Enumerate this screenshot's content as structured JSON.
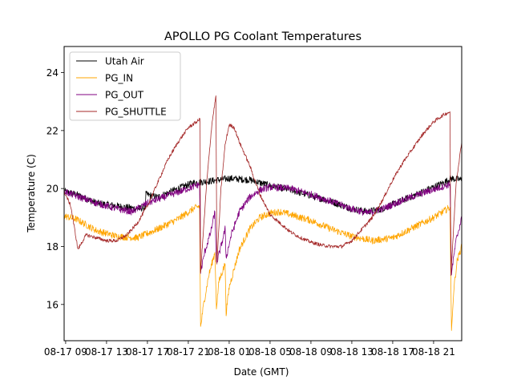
{
  "chart_data": {
    "type": "line",
    "title": "APOLLO PG Coolant Temperatures",
    "xlabel": "Date (GMT)",
    "ylabel": "Temperature (C)",
    "x_unit": "hours since 08-17 00:00 GMT",
    "xlim": [
      8.85,
      47.75
    ],
    "ylim": [
      14.75,
      24.9
    ],
    "xticks": [
      9,
      13,
      17,
      21,
      25,
      29,
      33,
      37,
      41,
      45
    ],
    "xtick_labels": [
      "08-17 09",
      "08-17 13",
      "08-17 17",
      "08-17 21",
      "08-18 01",
      "08-18 05",
      "08-18 09",
      "08-18 13",
      "08-18 17",
      "08-18 21"
    ],
    "yticks": [
      16,
      18,
      20,
      22,
      24
    ],
    "ytick_labels": [
      "16",
      "18",
      "20",
      "22",
      "24"
    ],
    "grid": false,
    "legend_position": "upper-left",
    "series": [
      {
        "name": "Utah Air",
        "color": "#000000",
        "noise": 0.12,
        "points": [
          [
            8.85,
            19.9
          ],
          [
            10,
            19.8
          ],
          [
            12,
            19.5
          ],
          [
            14,
            19.4
          ],
          [
            16,
            19.3
          ],
          [
            16.8,
            19.35
          ],
          [
            16.85,
            19.8
          ],
          [
            18,
            19.7
          ],
          [
            20,
            20.0
          ],
          [
            21.5,
            20.2
          ],
          [
            23,
            20.25
          ],
          [
            25,
            20.35
          ],
          [
            27,
            20.3
          ],
          [
            29,
            20.1
          ],
          [
            31,
            19.95
          ],
          [
            33,
            19.75
          ],
          [
            35,
            19.55
          ],
          [
            37,
            19.3
          ],
          [
            38.5,
            19.2
          ],
          [
            40,
            19.3
          ],
          [
            42,
            19.6
          ],
          [
            44,
            19.9
          ],
          [
            46,
            20.2
          ],
          [
            46.7,
            20.35
          ],
          [
            47.75,
            20.3
          ]
        ]
      },
      {
        "name": "PG_IN",
        "color": "#ffa500",
        "noise": 0.12,
        "points": [
          [
            8.85,
            19.05
          ],
          [
            10,
            18.95
          ],
          [
            12,
            18.55
          ],
          [
            14,
            18.35
          ],
          [
            16,
            18.3
          ],
          [
            18,
            18.6
          ],
          [
            20,
            18.95
          ],
          [
            21.5,
            19.3
          ],
          [
            22.1,
            19.4
          ],
          [
            22.2,
            15.2
          ],
          [
            22.5,
            16.0
          ],
          [
            23,
            17.0
          ],
          [
            23.6,
            17.8
          ],
          [
            23.75,
            15.9
          ],
          [
            24,
            16.8
          ],
          [
            24.6,
            17.4
          ],
          [
            24.7,
            15.7
          ],
          [
            25,
            16.6
          ],
          [
            26,
            17.9
          ],
          [
            27,
            18.6
          ],
          [
            28,
            19.0
          ],
          [
            29,
            19.15
          ],
          [
            30,
            19.2
          ],
          [
            31,
            19.1
          ],
          [
            33,
            18.9
          ],
          [
            35,
            18.6
          ],
          [
            37,
            18.35
          ],
          [
            39,
            18.2
          ],
          [
            41,
            18.3
          ],
          [
            43,
            18.65
          ],
          [
            45,
            19.0
          ],
          [
            46.6,
            19.35
          ],
          [
            46.75,
            15.1
          ],
          [
            47,
            16.6
          ],
          [
            47.3,
            17.5
          ],
          [
            47.75,
            18.0
          ]
        ]
      },
      {
        "name": "PG_OUT",
        "color": "#800080",
        "noise": 0.12,
        "points": [
          [
            8.85,
            19.9
          ],
          [
            10,
            19.75
          ],
          [
            12,
            19.5
          ],
          [
            14,
            19.3
          ],
          [
            15.5,
            19.2
          ],
          [
            17,
            19.5
          ],
          [
            19,
            19.75
          ],
          [
            21,
            20.0
          ],
          [
            22.1,
            20.15
          ],
          [
            22.2,
            17.1
          ],
          [
            22.6,
            17.8
          ],
          [
            23.2,
            18.5
          ],
          [
            23.6,
            19.2
          ],
          [
            23.75,
            17.4
          ],
          [
            24.2,
            18.0
          ],
          [
            24.6,
            18.6
          ],
          [
            24.7,
            17.6
          ],
          [
            25.2,
            18.4
          ],
          [
            26,
            19.2
          ],
          [
            27,
            19.7
          ],
          [
            28,
            19.95
          ],
          [
            29,
            20.05
          ],
          [
            31,
            20.0
          ],
          [
            33,
            19.8
          ],
          [
            35,
            19.55
          ],
          [
            37,
            19.3
          ],
          [
            38.5,
            19.15
          ],
          [
            40,
            19.3
          ],
          [
            42,
            19.6
          ],
          [
            44,
            19.85
          ],
          [
            46.6,
            20.15
          ],
          [
            46.75,
            17.1
          ],
          [
            47.2,
            18.2
          ],
          [
            47.75,
            19.0
          ]
        ]
      },
      {
        "name": "PG_SHUTTLE",
        "color": "#a52a2a",
        "noise": 0.06,
        "points": [
          [
            8.85,
            19.9
          ],
          [
            9.5,
            19.4
          ],
          [
            10.2,
            17.9
          ],
          [
            11,
            18.4
          ],
          [
            12,
            18.3
          ],
          [
            13,
            18.2
          ],
          [
            14,
            18.2
          ],
          [
            15,
            18.4
          ],
          [
            16,
            18.8
          ],
          [
            17,
            19.4
          ],
          [
            18,
            20.2
          ],
          [
            19,
            21.0
          ],
          [
            20,
            21.6
          ],
          [
            21,
            22.1
          ],
          [
            22,
            22.35
          ],
          [
            22.15,
            22.4
          ],
          [
            22.2,
            17.1
          ],
          [
            22.8,
            20.2
          ],
          [
            23.3,
            22.2
          ],
          [
            23.7,
            23.2
          ],
          [
            23.8,
            17.4
          ],
          [
            24.2,
            20.0
          ],
          [
            24.6,
            21.5
          ],
          [
            25,
            22.2
          ],
          [
            25.5,
            22.1
          ],
          [
            26,
            21.6
          ],
          [
            27,
            20.8
          ],
          [
            28,
            19.8
          ],
          [
            29,
            19.1
          ],
          [
            30,
            18.8
          ],
          [
            31,
            18.5
          ],
          [
            32,
            18.3
          ],
          [
            33,
            18.15
          ],
          [
            34,
            18.05
          ],
          [
            35,
            18.0
          ],
          [
            36,
            18.0
          ],
          [
            37,
            18.2
          ],
          [
            38,
            18.6
          ],
          [
            39,
            19.0
          ],
          [
            40,
            19.6
          ],
          [
            41,
            20.3
          ],
          [
            42,
            20.9
          ],
          [
            43,
            21.4
          ],
          [
            44,
            21.9
          ],
          [
            45,
            22.3
          ],
          [
            46,
            22.55
          ],
          [
            46.6,
            22.65
          ],
          [
            46.7,
            17.0
          ],
          [
            47.2,
            20.2
          ],
          [
            47.75,
            21.6
          ]
        ]
      }
    ]
  }
}
